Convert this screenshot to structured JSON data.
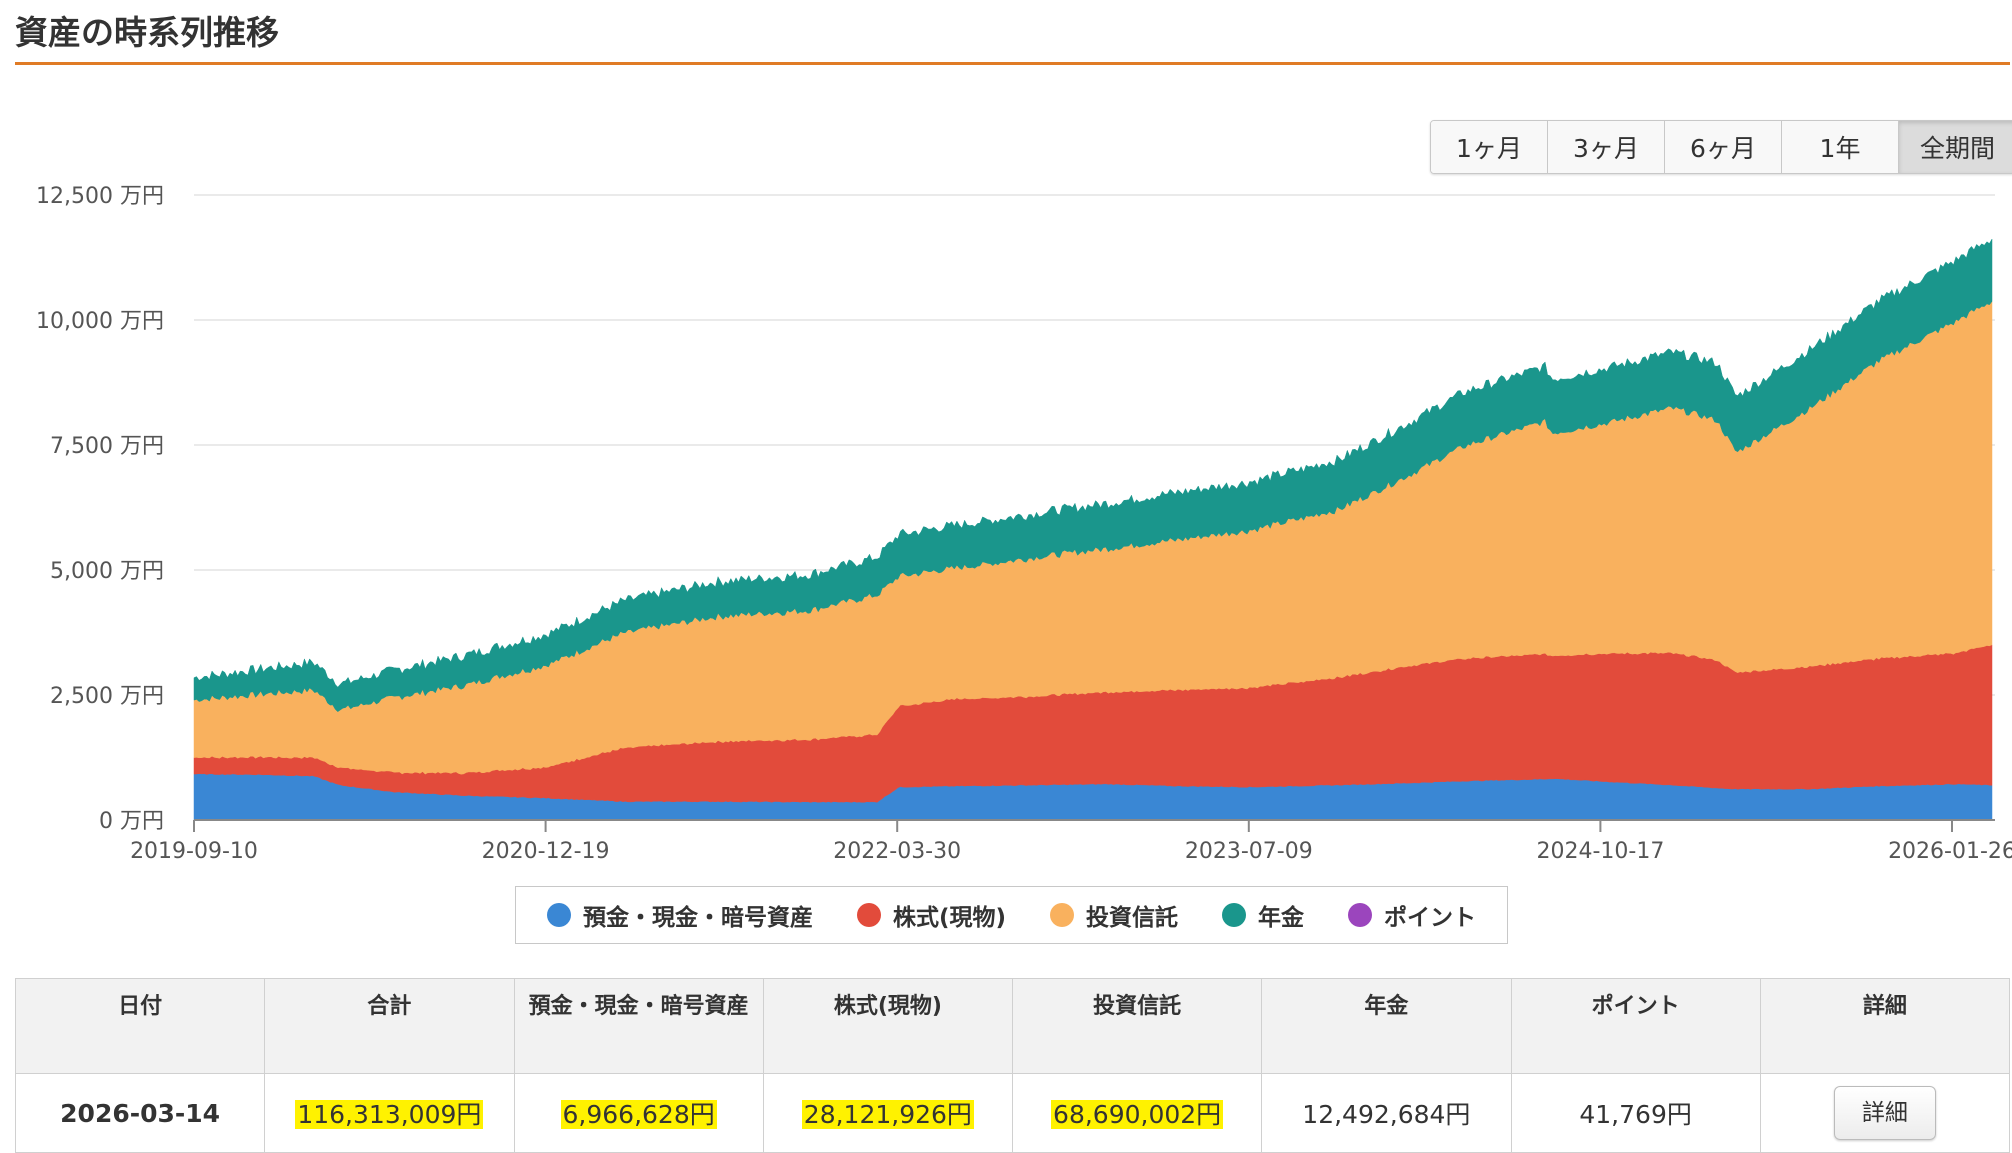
{
  "page": {
    "title": "資産の時系列推移"
  },
  "range_buttons": [
    {
      "label": "1ヶ月"
    },
    {
      "label": "3ヶ月"
    },
    {
      "label": "6ヶ月"
    },
    {
      "label": "1年"
    },
    {
      "label": "全期間",
      "active": true
    }
  ],
  "legend": [
    {
      "label": "預金・現金・暗号資産",
      "color": "#3a87d4"
    },
    {
      "label": "株式(現物)",
      "color": "#e24b3b"
    },
    {
      "label": "投資信託",
      "color": "#f9b15e"
    },
    {
      "label": "年金",
      "color": "#1a968c"
    },
    {
      "label": "ポイント",
      "color": "#9b45bd"
    }
  ],
  "chart_data": {
    "type": "area",
    "stacked": true,
    "y_unit": "万円",
    "ylim": [
      0,
      12500
    ],
    "y_ticks": [
      0,
      2500,
      5000,
      7500,
      10000,
      12500
    ],
    "y_tick_labels": [
      "0 万円",
      "2,500 万円",
      "5,000 万円",
      "7,500 万円",
      "10,000 万円",
      "12,500 万円"
    ],
    "x_ticks": [
      "2019-09-10",
      "2020-12-19",
      "2022-03-30",
      "2023-07-09",
      "2024-10-17",
      "2026-01-26"
    ],
    "grid": true,
    "legend_position": "bottom",
    "x": [
      "2019-09-10",
      "2019-12-01",
      "2020-02-15",
      "2020-03-20",
      "2020-06-01",
      "2020-09-01",
      "2020-12-19",
      "2021-04-01",
      "2021-08-01",
      "2021-12-01",
      "2022-03-01",
      "2022-03-30",
      "2022-06-15",
      "2022-09-30",
      "2022-12-31",
      "2023-03-31",
      "2023-07-09",
      "2023-10-31",
      "2024-01-31",
      "2024-04-15",
      "2024-07-31",
      "2024-08-10",
      "2024-10-17",
      "2025-01-15",
      "2025-03-15",
      "2025-04-10",
      "2025-07-15",
      "2025-10-15",
      "2026-01-26",
      "2026-03-14"
    ],
    "series": [
      {
        "name": "預金・現金・暗号資産",
        "values": [
          920,
          910,
          880,
          700,
          560,
          490,
          440,
          370,
          370,
          360,
          360,
          660,
          680,
          700,
          720,
          680,
          660,
          700,
          740,
          780,
          820,
          830,
          770,
          700,
          640,
          620,
          620,
          680,
          720,
          697
        ]
      },
      {
        "name": "株式(現物)",
        "values": [
          330,
          350,
          370,
          350,
          390,
          450,
          620,
          1070,
          1200,
          1250,
          1350,
          1620,
          1740,
          1780,
          1840,
          1920,
          1990,
          2150,
          2340,
          2450,
          2500,
          2460,
          2560,
          2640,
          2560,
          2330,
          2450,
          2550,
          2620,
          2812
        ]
      },
      {
        "name": "投資信託",
        "values": [
          1150,
          1250,
          1350,
          1150,
          1500,
          1750,
          2040,
          2300,
          2500,
          2580,
          2790,
          2600,
          2620,
          2780,
          2870,
          3000,
          3150,
          3350,
          3800,
          4250,
          4650,
          4450,
          4600,
          4900,
          4800,
          4400,
          5150,
          5950,
          6640,
          6869
        ]
      },
      {
        "name": "年金",
        "values": [
          450,
          500,
          560,
          520,
          550,
          600,
          620,
          650,
          700,
          720,
          760,
          840,
          860,
          880,
          910,
          950,
          970,
          1000,
          1050,
          1080,
          1100,
          1080,
          1100,
          1120,
          1150,
          1120,
          1180,
          1200,
          1230,
          1249
        ]
      },
      {
        "name": "ポイント",
        "values": [
          0,
          0,
          0,
          0,
          0,
          0,
          0,
          0,
          0,
          1,
          1,
          1,
          1,
          1,
          1,
          2,
          2,
          2,
          2,
          2,
          3,
          3,
          3,
          3,
          3,
          3,
          3,
          4,
          4,
          4
        ]
      }
    ]
  },
  "table": {
    "headers": {
      "date": "日付",
      "total": "合計",
      "cash": "預金・現金・暗号資産",
      "stocks": "株式(現物)",
      "funds": "投資信託",
      "pension": "年金",
      "points": "ポイント",
      "detail": "詳細"
    },
    "row": {
      "date": "2026-03-14",
      "total": "116,313,009円",
      "cash": "6,966,628円",
      "stocks": "28,121,926円",
      "funds": "68,690,002円",
      "pension": "12,492,684円",
      "points": "41,769円",
      "detail_button": "詳細"
    }
  }
}
